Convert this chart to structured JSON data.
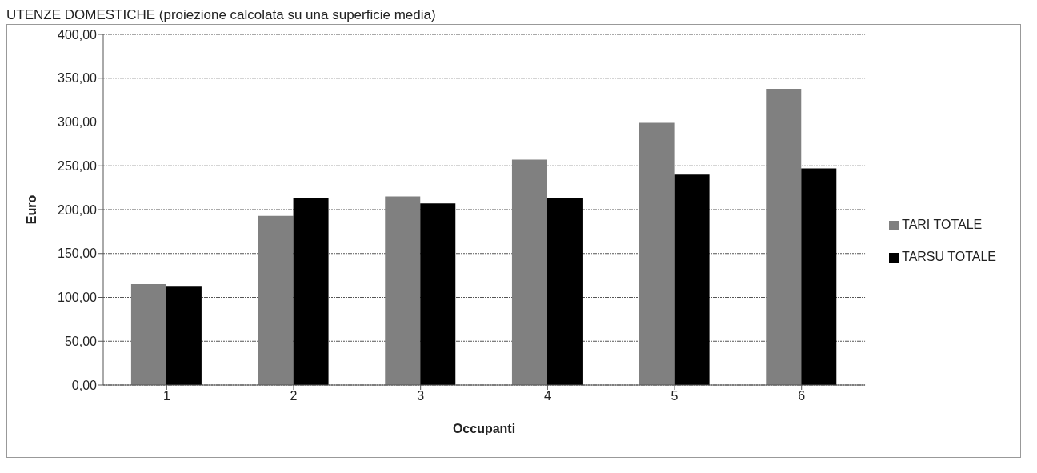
{
  "chart_data": {
    "type": "bar",
    "title": "UTENZE DOMESTICHE (proiezione calcolata su una superficie media)",
    "xlabel": "Occupanti",
    "ylabel": "Euro",
    "categories": [
      "1",
      "2",
      "3",
      "4",
      "5",
      "6"
    ],
    "series": [
      {
        "name": "TARI TOTALE",
        "color": "#808080",
        "values": [
          115,
          193,
          215,
          257,
          299,
          338
        ]
      },
      {
        "name": "TARSU TOTALE",
        "color": "#000000",
        "values": [
          113,
          213,
          207,
          213,
          240,
          247
        ]
      }
    ],
    "ylim": [
      0,
      400
    ],
    "yticks": [
      {
        "value": 0,
        "label": "0,00"
      },
      {
        "value": 50,
        "label": "50,00"
      },
      {
        "value": 100,
        "label": "100,00"
      },
      {
        "value": 150,
        "label": "150,00"
      },
      {
        "value": 200,
        "label": "200,00"
      },
      {
        "value": 250,
        "label": "250,00"
      },
      {
        "value": 300,
        "label": "300,00"
      },
      {
        "value": 350,
        "label": "350,00"
      },
      {
        "value": 400,
        "label": "400,00"
      }
    ],
    "grid": "y",
    "legend": "right"
  }
}
